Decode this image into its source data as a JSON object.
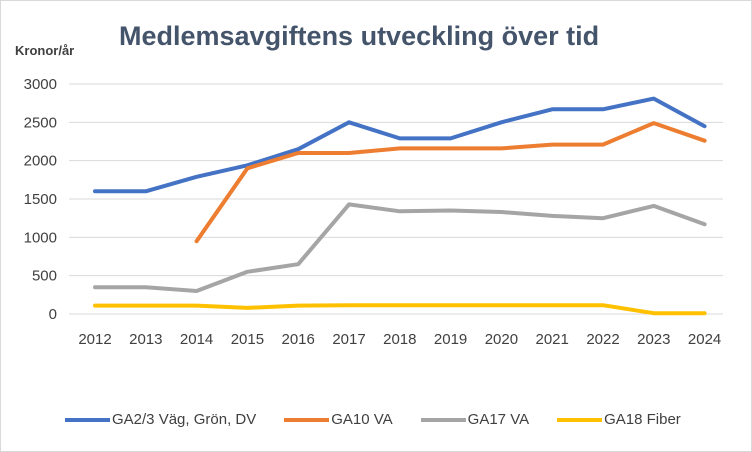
{
  "chart_data": {
    "type": "line",
    "title": "Medlemsavgiftens utveckling över tid",
    "ylabel": "Kronor/år",
    "xlabel": "",
    "ylim": [
      0,
      3000
    ],
    "yticks": [
      0,
      500,
      1000,
      1500,
      2000,
      2500,
      3000
    ],
    "categories": [
      "2012",
      "2013",
      "2014",
      "2015",
      "2016",
      "2017",
      "2018",
      "2019",
      "2020",
      "2021",
      "2022",
      "2023",
      "2024"
    ],
    "grid": "horizontal",
    "legend_position": "bottom",
    "series": [
      {
        "name": "GA2/3 Väg, Grön, DV",
        "color": "#4472c4",
        "values": [
          1600,
          1600,
          1790,
          1940,
          2150,
          2500,
          2290,
          2290,
          2500,
          2670,
          2670,
          2810,
          2450
        ]
      },
      {
        "name": "GA10 VA",
        "color": "#ed7d31",
        "values": [
          null,
          null,
          950,
          1900,
          2100,
          2100,
          2160,
          2160,
          2160,
          2210,
          2210,
          2490,
          2260
        ]
      },
      {
        "name": "GA17 VA",
        "color": "#a5a5a5",
        "values": [
          350,
          350,
          300,
          550,
          650,
          1430,
          1340,
          1350,
          1330,
          1280,
          1250,
          1410,
          1170
        ]
      },
      {
        "name": "GA18 Fiber",
        "color": "#ffc000",
        "values": [
          110,
          110,
          110,
          80,
          110,
          115,
          115,
          115,
          115,
          115,
          115,
          10,
          10
        ]
      }
    ]
  }
}
